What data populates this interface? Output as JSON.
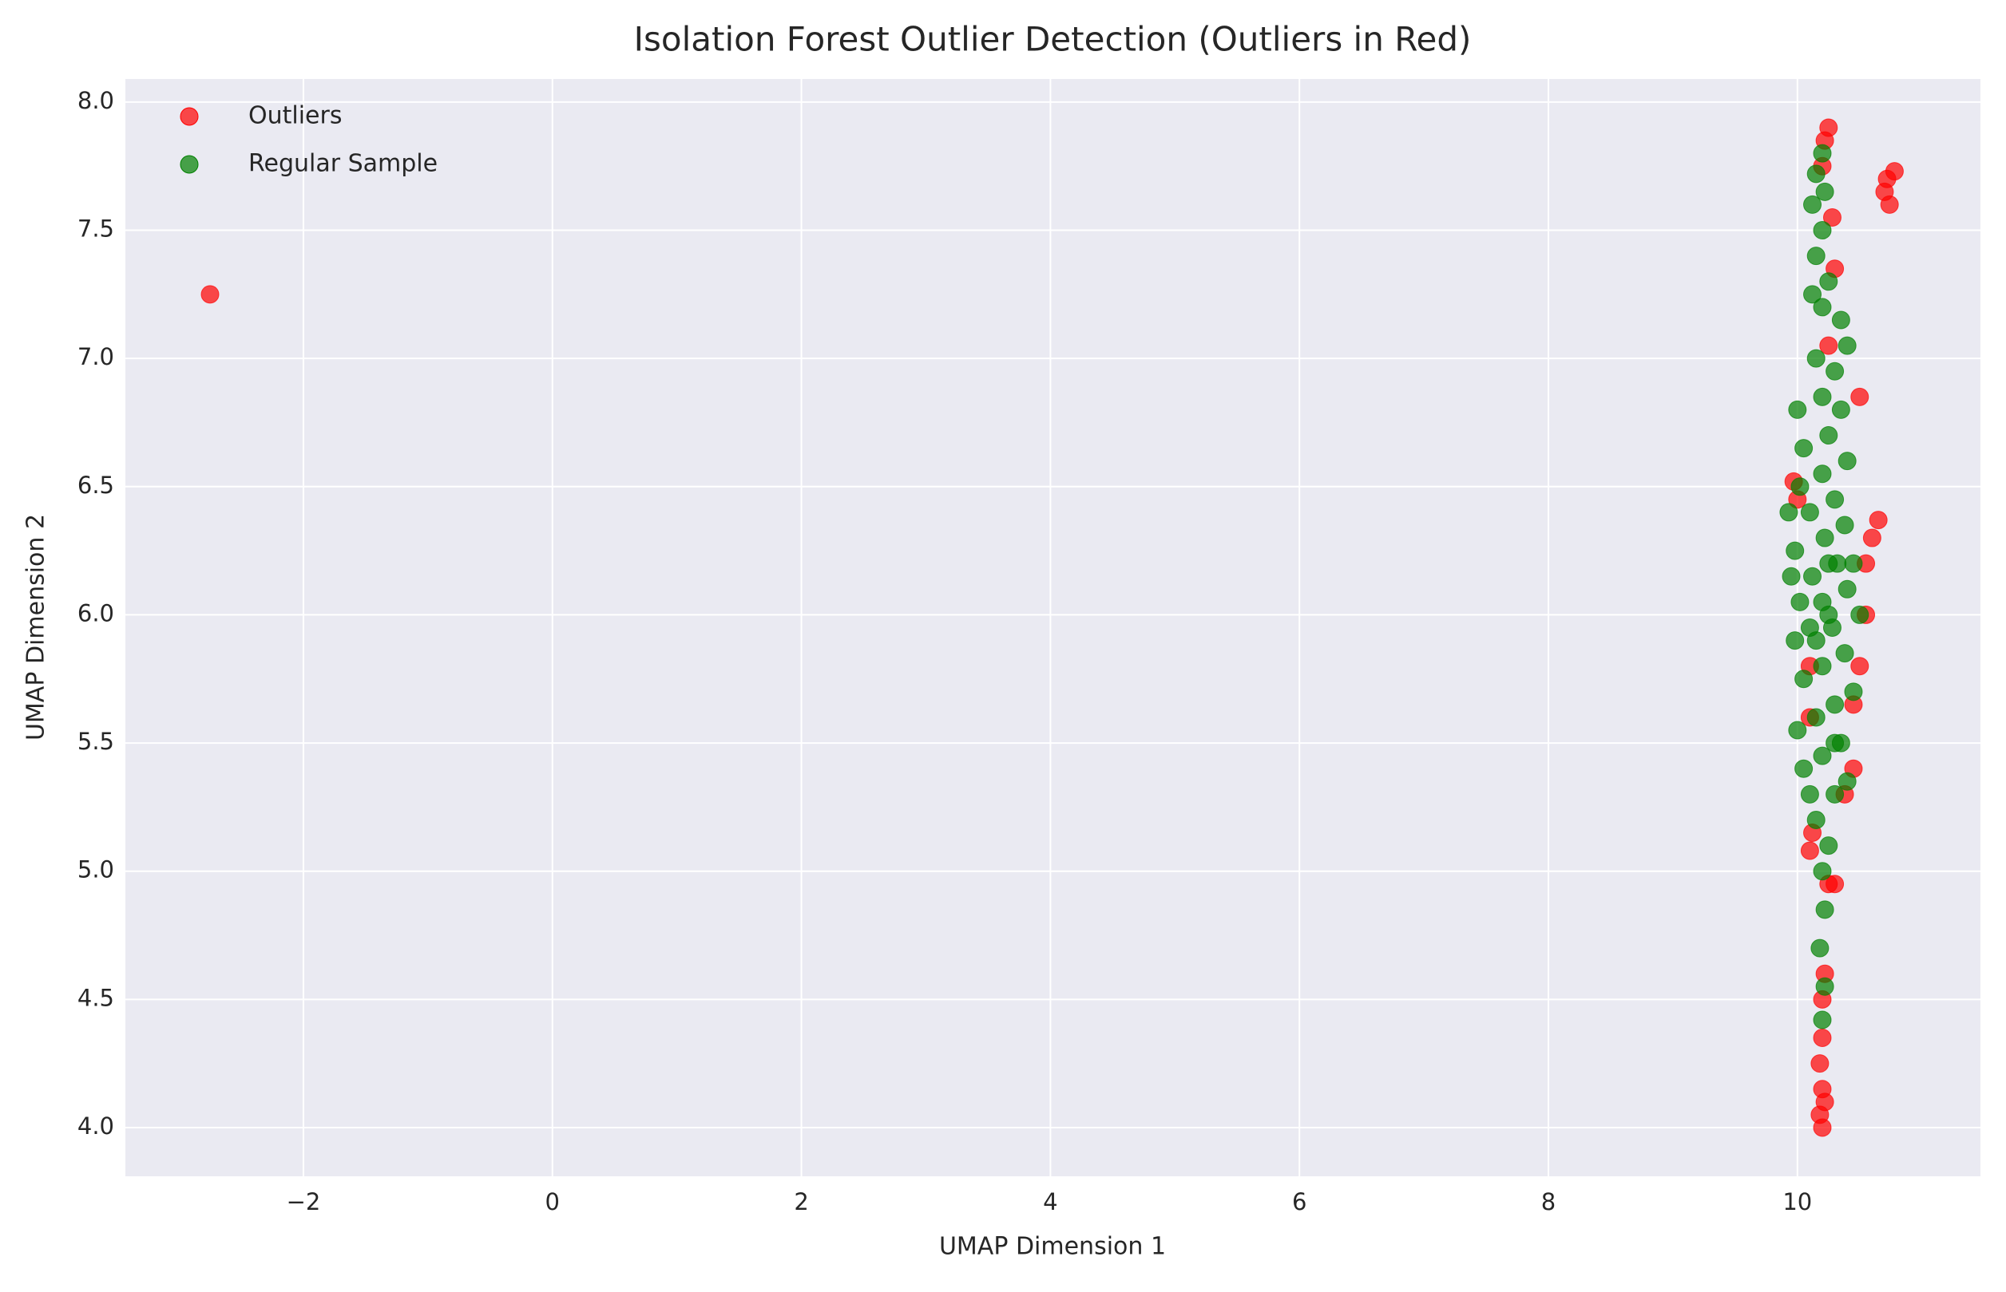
{
  "chart_data": {
    "type": "scatter",
    "title": "Isolation Forest Outlier Detection (Outliers in Red)",
    "x_label": "UMAP Dimension 1",
    "y_label": "UMAP Dimension 2",
    "xlim": [
      -3.43,
      11.47
    ],
    "ylim": [
      3.81,
      8.09
    ],
    "xticks": [
      {
        "value": -2,
        "label": "−2"
      },
      0,
      2,
      4,
      6,
      8,
      10
    ],
    "yticks": [
      {
        "value": 4,
        "label": "4.0"
      },
      4.5,
      {
        "value": 5,
        "label": "5.0"
      },
      5.5,
      {
        "value": 6,
        "label": "6.0"
      },
      6.5,
      {
        "value": 7,
        "label": "7.0"
      },
      7.5,
      {
        "value": 8,
        "label": "8.0"
      }
    ],
    "grid": true,
    "legend": "upper left",
    "series": [
      {
        "name": "Outliers",
        "color": "red",
        "x": [
          -2.75,
          10.72,
          10.78,
          10.74,
          10.7,
          10.25,
          10.22,
          10.2,
          10.28,
          10.3,
          10.25,
          10.5,
          10.65,
          10.6,
          9.97,
          10.0,
          10.55,
          10.55,
          10.5,
          10.45,
          10.1,
          10.1,
          10.12,
          10.1,
          10.25,
          10.22,
          10.2,
          10.2,
          10.18,
          10.2,
          10.18,
          10.2,
          10.22,
          10.3,
          10.45,
          10.38
        ],
        "y": [
          7.25,
          7.7,
          7.73,
          7.6,
          7.65,
          7.9,
          7.85,
          7.75,
          7.55,
          7.35,
          7.05,
          6.85,
          6.37,
          6.3,
          6.52,
          6.45,
          6.2,
          6.0,
          5.8,
          5.65,
          5.8,
          5.6,
          5.15,
          5.08,
          4.95,
          4.6,
          4.5,
          4.35,
          4.25,
          4.15,
          4.05,
          4.0,
          4.1,
          4.95,
          5.4,
          5.3
        ]
      },
      {
        "name": "Regular Sample",
        "color": "green",
        "x": [
          10.2,
          10.22,
          10.18,
          10.22,
          10.2,
          10.25,
          10.15,
          10.1,
          10.3,
          10.4,
          10.05,
          10.2,
          10.35,
          10.0,
          10.15,
          10.3,
          10.45,
          10.05,
          10.2,
          10.38,
          9.98,
          10.1,
          10.28,
          10.5,
          10.02,
          10.2,
          10.4,
          9.95,
          10.12,
          10.32,
          10.45,
          9.98,
          10.22,
          10.38,
          9.93,
          10.1,
          10.3,
          10.02,
          10.2,
          10.4,
          10.05,
          10.25,
          10.35,
          10.0,
          10.2,
          10.3,
          10.15,
          10.4,
          10.35,
          10.2,
          10.12,
          10.25,
          10.15,
          10.2,
          10.12,
          10.22,
          10.15,
          10.2,
          10.25,
          10.3,
          10.25,
          10.15
        ],
        "y": [
          4.42,
          4.55,
          4.7,
          4.85,
          5.0,
          5.1,
          5.2,
          5.3,
          5.3,
          5.35,
          5.4,
          5.45,
          5.5,
          5.55,
          5.6,
          5.65,
          5.7,
          5.75,
          5.8,
          5.85,
          5.9,
          5.95,
          5.95,
          6.0,
          6.05,
          6.05,
          6.1,
          6.15,
          6.15,
          6.2,
          6.2,
          6.25,
          6.3,
          6.35,
          6.4,
          6.4,
          6.45,
          6.5,
          6.55,
          6.6,
          6.65,
          6.7,
          6.8,
          6.8,
          6.85,
          6.95,
          7.0,
          7.05,
          7.15,
          7.2,
          7.25,
          7.3,
          7.4,
          7.5,
          7.6,
          7.65,
          7.72,
          7.8,
          6.0,
          5.5,
          6.2,
          5.9
        ]
      }
    ]
  }
}
